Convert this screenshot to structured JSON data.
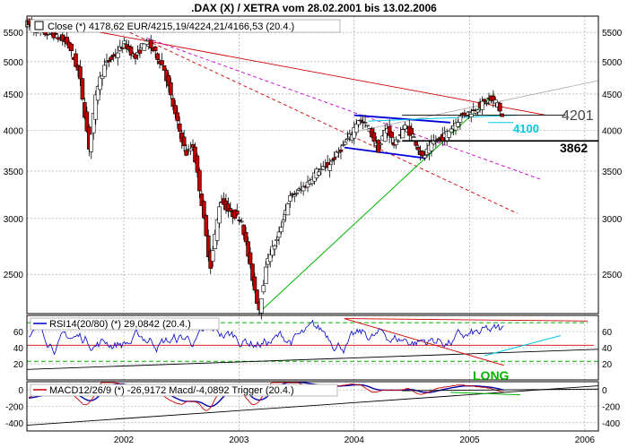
{
  "title": ".DAX (X) / XETRA vom 28.02.2001 bis 13.02.2006",
  "x_tick_labels": [
    "2002",
    "2003",
    "2004",
    "2005",
    "2006"
  ],
  "price_panel": {
    "legend": "Close (*) 4178,62 EUR/4215,19/4224,21/4166,53 (20.4.)",
    "y_tick_labels": [
      "5500",
      "5000",
      "4500",
      "4000",
      "3500",
      "3000",
      "2500"
    ],
    "annotations": [
      {
        "text": "4201",
        "color": "#000000"
      },
      {
        "text": "4100",
        "color": "#00c8e6"
      },
      {
        "text": "3862",
        "color": "#000000"
      }
    ]
  },
  "rsi_panel": {
    "legend": "RSI14(20/80) (*) 29,0842 (20.4.)",
    "y_tick_labels": [
      "60",
      "40",
      "20"
    ],
    "annotation": "LONG"
  },
  "macd_panel": {
    "legend": "MACD12/26/9 (*) -26,9172 Macd/-4,0892 Trigger (20.4.)",
    "y_tick_labels": [
      "0",
      "-200",
      "-400"
    ]
  },
  "colors": {
    "candle_up": "#ffffff",
    "candle_down": "#c00000",
    "rsi_line": "#0000cc",
    "macd_line": "#cc0000",
    "trigger_line": "#0000aa",
    "trend_up": "#00b400",
    "trend_red": "#d00000",
    "channel_magenta": "#cc00cc",
    "channel_blue": "#0000dd",
    "cyan": "#00c8e6",
    "grid": "#999999"
  },
  "chart_data": {
    "type": "line",
    "x_range": [
      "2001-02-28",
      "2006-02-13"
    ],
    "ylim": [
      2200,
      5800
    ],
    "y_scale": "log",
    "grid": true,
    "series": [
      {
        "values_by_date": [
          [
            "2001-03-01",
            5700
          ],
          [
            "2001-04-15",
            5500
          ],
          [
            "2001-06-01",
            5450
          ],
          [
            "2001-07-15",
            5300
          ],
          [
            "2001-08-20",
            4800
          ],
          [
            "2001-09-21",
            3750
          ],
          [
            "2001-10-15",
            4600
          ],
          [
            "2001-11-10",
            4950
          ],
          [
            "2001-12-10",
            5100
          ],
          [
            "2002-01-10",
            5300
          ],
          [
            "2002-02-15",
            5050
          ],
          [
            "2002-03-15",
            5350
          ],
          [
            "2002-04-10",
            5200
          ],
          [
            "2002-05-15",
            4900
          ],
          [
            "2002-06-20",
            4200
          ],
          [
            "2002-07-24",
            3700
          ],
          [
            "2002-08-15",
            3800
          ],
          [
            "2002-09-10",
            3200
          ],
          [
            "2002-10-09",
            2550
          ],
          [
            "2002-11-10",
            3200
          ],
          [
            "2002-12-10",
            3050
          ],
          [
            "2003-01-15",
            3000
          ],
          [
            "2003-02-10",
            2600
          ],
          [
            "2003-03-12",
            2220
          ],
          [
            "2003-04-10",
            2650
          ],
          [
            "2003-05-10",
            2800
          ],
          [
            "2003-06-15",
            3200
          ],
          [
            "2003-08-10",
            3350
          ],
          [
            "2003-09-10",
            3500
          ],
          [
            "2003-10-15",
            3550
          ],
          [
            "2003-11-15",
            3700
          ],
          [
            "2003-12-31",
            3950
          ],
          [
            "2004-01-20",
            4150
          ],
          [
            "2004-02-20",
            4050
          ],
          [
            "2004-03-25",
            3750
          ],
          [
            "2004-04-20",
            4050
          ],
          [
            "2004-05-15",
            3800
          ],
          [
            "2004-06-15",
            4050
          ],
          [
            "2004-07-15",
            3900
          ],
          [
            "2004-08-12",
            3650
          ],
          [
            "2004-09-15",
            3850
          ],
          [
            "2004-10-15",
            3900
          ],
          [
            "2004-11-15",
            4050
          ],
          [
            "2004-12-15",
            4200
          ],
          [
            "2005-01-15",
            4250
          ],
          [
            "2005-02-15",
            4350
          ],
          [
            "2005-03-10",
            4420
          ],
          [
            "2005-03-25",
            4380
          ],
          [
            "2005-04-05",
            4400
          ],
          [
            "2005-04-20",
            4178
          ]
        ]
      }
    ]
  }
}
